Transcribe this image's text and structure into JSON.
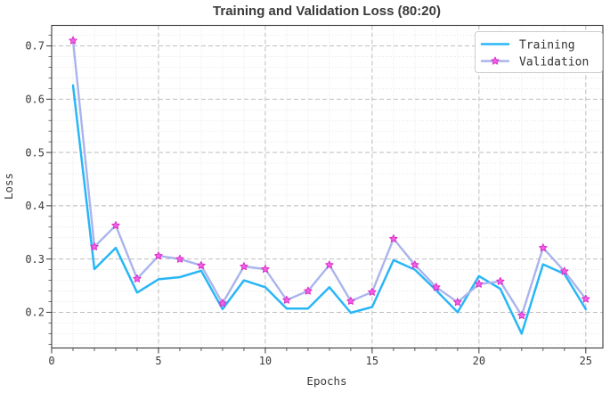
{
  "title": "Training and Validation Loss (80:20)",
  "colors": {
    "training_line": "#29b6f6",
    "validation_line": "#aab4ec",
    "validation_marker_fill": "#f263e2",
    "validation_marker_edge": "#dc30cc",
    "grid_major": "#b5b5b5",
    "grid_minor": "#dcdcdc",
    "spine": "#3a3a3a",
    "text": "#3a3a3a",
    "legend_border": "#cccccc",
    "background": "#ffffff"
  },
  "chart_data": {
    "type": "line",
    "title": "Training and Validation Loss (80:20)",
    "xlabel": "Epochs",
    "ylabel": "Loss",
    "x": [
      1,
      2,
      3,
      4,
      5,
      6,
      7,
      8,
      9,
      10,
      11,
      12,
      13,
      14,
      15,
      16,
      17,
      18,
      19,
      20,
      21,
      22,
      23,
      24,
      25
    ],
    "series": [
      {
        "name": "Training",
        "color": "#29b6f6",
        "marker": "none",
        "values": [
          0.626,
          0.281,
          0.321,
          0.237,
          0.262,
          0.266,
          0.278,
          0.206,
          0.26,
          0.247,
          0.207,
          0.207,
          0.247,
          0.199,
          0.21,
          0.298,
          0.28,
          0.241,
          0.2,
          0.268,
          0.244,
          0.16,
          0.29,
          0.272,
          0.206
        ]
      },
      {
        "name": "Validation",
        "color": "#aab4ec",
        "marker": "star",
        "marker_fill": "#f263e2",
        "marker_edge": "#dc30cc",
        "values": [
          0.71,
          0.323,
          0.363,
          0.263,
          0.306,
          0.3,
          0.288,
          0.217,
          0.286,
          0.281,
          0.223,
          0.24,
          0.289,
          0.221,
          0.238,
          0.338,
          0.289,
          0.247,
          0.219,
          0.253,
          0.258,
          0.194,
          0.321,
          0.277,
          0.225
        ]
      }
    ],
    "xlim": [
      0,
      25.8
    ],
    "ylim": [
      0.133,
      0.7385
    ],
    "xticks": [
      0,
      5,
      10,
      15,
      20,
      25
    ],
    "yticks": [
      0.2,
      0.3,
      0.4,
      0.5,
      0.6,
      0.7
    ],
    "minor_x_step": 1,
    "minor_y_step": 0.02,
    "grid": "major-dashed + minor-dotted",
    "legend_position": "upper right"
  }
}
